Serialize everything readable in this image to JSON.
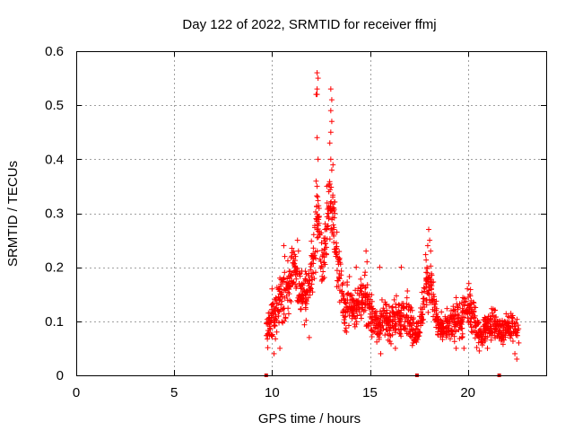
{
  "chart_data": {
    "type": "scatter",
    "title": "Day 122 of 2022, SRMTID for receiver ffmj",
    "xlabel": "GPS time / hours",
    "ylabel": "SRMTID / TECUs",
    "xlim": [
      0,
      24
    ],
    "ylim": [
      0,
      0.6
    ],
    "xticks": [
      0,
      5,
      10,
      15,
      20
    ],
    "xtick_labels": [
      "0",
      "5",
      "10",
      "15",
      "20"
    ],
    "yticks": [
      0,
      0.1,
      0.2,
      0.3,
      0.4,
      0.5,
      0.6
    ],
    "ytick_labels": [
      "0",
      "0.1",
      "0.2",
      "0.3",
      "0.4",
      "0.5",
      "0.6"
    ],
    "grid": true,
    "marker": "+",
    "color": "#ff0000",
    "gap_markers_x": [
      9.7,
      17.4,
      21.6
    ],
    "series": [
      {
        "name": "SRMTID",
        "profile": [
          [
            9.7,
            0.08,
            0.03
          ],
          [
            9.9,
            0.09,
            0.04
          ],
          [
            10.1,
            0.11,
            0.04
          ],
          [
            10.3,
            0.13,
            0.05
          ],
          [
            10.5,
            0.16,
            0.06
          ],
          [
            10.7,
            0.15,
            0.05
          ],
          [
            10.9,
            0.17,
            0.06
          ],
          [
            11.1,
            0.19,
            0.06
          ],
          [
            11.3,
            0.17,
            0.05
          ],
          [
            11.5,
            0.15,
            0.05
          ],
          [
            11.7,
            0.15,
            0.05
          ],
          [
            11.9,
            0.16,
            0.05
          ],
          [
            12.1,
            0.21,
            0.06
          ],
          [
            12.3,
            0.3,
            0.08
          ],
          [
            12.5,
            0.22,
            0.06
          ],
          [
            12.7,
            0.22,
            0.06
          ],
          [
            12.9,
            0.3,
            0.07
          ],
          [
            13.1,
            0.32,
            0.08
          ],
          [
            13.3,
            0.22,
            0.06
          ],
          [
            13.5,
            0.17,
            0.05
          ],
          [
            13.7,
            0.12,
            0.04
          ],
          [
            13.9,
            0.14,
            0.05
          ],
          [
            14.1,
            0.13,
            0.04
          ],
          [
            14.3,
            0.12,
            0.04
          ],
          [
            14.5,
            0.14,
            0.05
          ],
          [
            14.7,
            0.15,
            0.05
          ],
          [
            14.9,
            0.12,
            0.04
          ],
          [
            15.1,
            0.11,
            0.04
          ],
          [
            15.3,
            0.1,
            0.04
          ],
          [
            15.5,
            0.09,
            0.03
          ],
          [
            15.7,
            0.11,
            0.04
          ],
          [
            15.9,
            0.1,
            0.04
          ],
          [
            16.1,
            0.09,
            0.04
          ],
          [
            16.3,
            0.11,
            0.04
          ],
          [
            16.5,
            0.11,
            0.04
          ],
          [
            16.7,
            0.12,
            0.04
          ],
          [
            16.9,
            0.11,
            0.04
          ],
          [
            17.1,
            0.1,
            0.04
          ],
          [
            17.3,
            0.08,
            0.03
          ],
          [
            17.5,
            0.08,
            0.03
          ],
          [
            17.7,
            0.13,
            0.05
          ],
          [
            17.9,
            0.18,
            0.06
          ],
          [
            18.1,
            0.17,
            0.05
          ],
          [
            18.3,
            0.12,
            0.04
          ],
          [
            18.5,
            0.09,
            0.03
          ],
          [
            18.7,
            0.08,
            0.03
          ],
          [
            18.9,
            0.09,
            0.03
          ],
          [
            19.1,
            0.09,
            0.03
          ],
          [
            19.3,
            0.1,
            0.04
          ],
          [
            19.5,
            0.11,
            0.04
          ],
          [
            19.7,
            0.1,
            0.04
          ],
          [
            19.9,
            0.12,
            0.04
          ],
          [
            20.1,
            0.12,
            0.04
          ],
          [
            20.3,
            0.1,
            0.04
          ],
          [
            20.5,
            0.08,
            0.03
          ],
          [
            20.7,
            0.08,
            0.03
          ],
          [
            20.9,
            0.09,
            0.03
          ],
          [
            21.1,
            0.09,
            0.03
          ],
          [
            21.3,
            0.1,
            0.03
          ],
          [
            21.5,
            0.09,
            0.03
          ],
          [
            21.7,
            0.08,
            0.03
          ],
          [
            21.9,
            0.08,
            0.03
          ],
          [
            22.1,
            0.09,
            0.03
          ],
          [
            22.3,
            0.09,
            0.03
          ],
          [
            22.6,
            0.08,
            0.03
          ]
        ],
        "points": [
          [
            12.3,
            0.56
          ],
          [
            12.35,
            0.55
          ],
          [
            12.3,
            0.53
          ],
          [
            12.25,
            0.52
          ],
          [
            12.3,
            0.52
          ],
          [
            13.0,
            0.53
          ],
          [
            13.05,
            0.51
          ],
          [
            13.0,
            0.49
          ],
          [
            13.05,
            0.47
          ],
          [
            13.0,
            0.45
          ],
          [
            12.95,
            0.43
          ],
          [
            13.0,
            0.4
          ],
          [
            13.05,
            0.38
          ],
          [
            12.3,
            0.44
          ],
          [
            12.35,
            0.4
          ],
          [
            12.3,
            0.35
          ],
          [
            12.8,
            0.35
          ],
          [
            12.9,
            0.34
          ],
          [
            13.1,
            0.33
          ],
          [
            13.15,
            0.31
          ],
          [
            12.25,
            0.29
          ],
          [
            12.3,
            0.27
          ],
          [
            12.45,
            0.26
          ],
          [
            12.7,
            0.27
          ],
          [
            12.85,
            0.3
          ],
          [
            13.15,
            0.27
          ],
          [
            10.0,
            0.16
          ],
          [
            10.2,
            0.14
          ],
          [
            10.3,
            0.12
          ],
          [
            10.6,
            0.24
          ],
          [
            10.65,
            0.22
          ],
          [
            11.3,
            0.25
          ],
          [
            11.35,
            0.23
          ],
          [
            11.2,
            0.22
          ],
          [
            14.3,
            0.2
          ],
          [
            14.8,
            0.23
          ],
          [
            14.85,
            0.21
          ],
          [
            15.5,
            0.2
          ],
          [
            16.6,
            0.2
          ],
          [
            18.0,
            0.27
          ],
          [
            18.05,
            0.25
          ],
          [
            17.95,
            0.24
          ],
          [
            18.1,
            0.23
          ],
          [
            20.05,
            0.17
          ],
          [
            20.1,
            0.15
          ],
          [
            10.1,
            0.04
          ],
          [
            10.4,
            0.05
          ],
          [
            15.55,
            0.04
          ],
          [
            19.4,
            0.05
          ],
          [
            21.0,
            0.05
          ],
          [
            22.5,
            0.03
          ],
          [
            22.4,
            0.04
          ],
          [
            22.6,
            0.06
          ],
          [
            11.9,
            0.07
          ],
          [
            13.8,
            0.08
          ],
          [
            16.3,
            0.05
          ],
          [
            17.2,
            0.06
          ],
          [
            19.8,
            0.05
          ]
        ]
      }
    ]
  }
}
